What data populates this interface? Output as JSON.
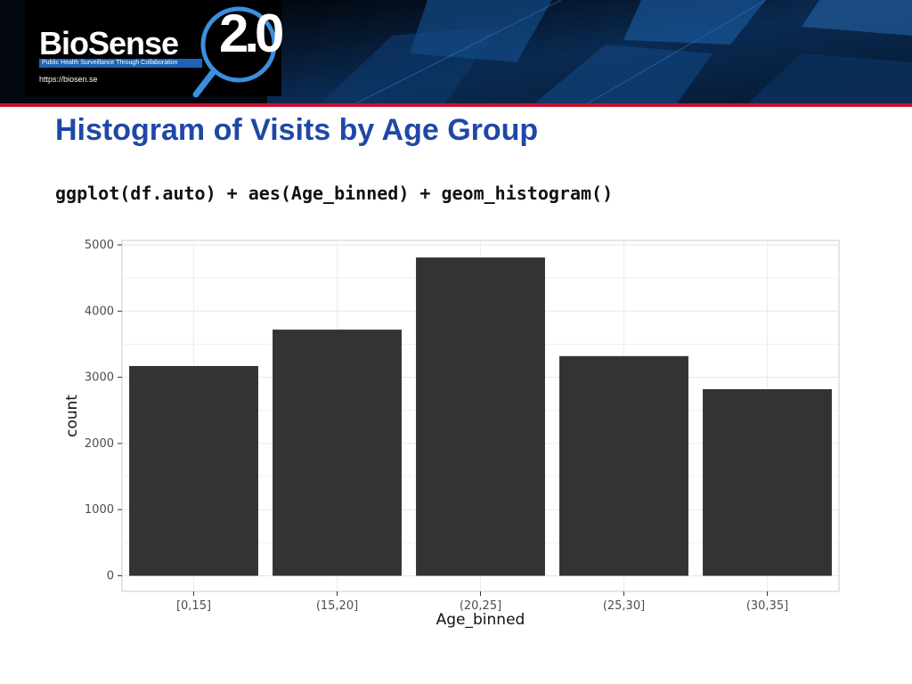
{
  "header": {
    "logo_name": "BioSense",
    "logo_version": "2.0",
    "logo_tagline": "Public Health Surveillance Through Collaboration",
    "logo_url": "https://biosen.se",
    "colors": {
      "banner": "#03070f",
      "accent_line": "#c8102e",
      "title": "#1f48a6"
    }
  },
  "slide": {
    "title": "Histogram of Visits by Age Group",
    "code": "ggplot(df.auto) + aes(Age_binned) + geom_histogram()"
  },
  "chart_data": {
    "type": "bar",
    "categories": [
      "[0,15]",
      "(15,20]",
      "(20,25]",
      "(25,30]",
      "(30,35]"
    ],
    "values": [
      3170,
      3720,
      4810,
      3320,
      2820
    ],
    "xlabel": "Age_binned",
    "ylabel": "count",
    "ylim": [
      0,
      5000
    ],
    "yticks": [
      0,
      1000,
      2000,
      3000,
      4000,
      5000
    ],
    "bar_color": "#333333",
    "grid": true
  }
}
